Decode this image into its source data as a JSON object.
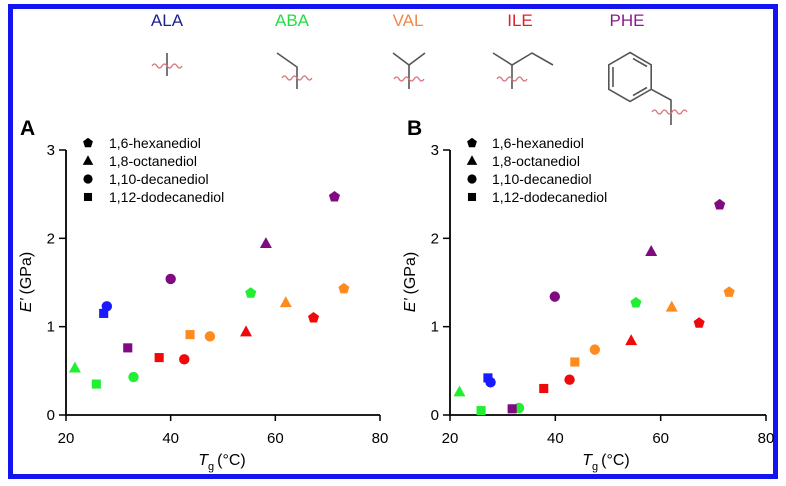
{
  "header": {
    "amino_acids": [
      {
        "code": "ALA",
        "color": "#1e1e96"
      },
      {
        "code": "ABA",
        "color": "#22dd44"
      },
      {
        "code": "VAL",
        "color": "#f0884a"
      },
      {
        "code": "ILE",
        "color": "#e01e28"
      },
      {
        "code": "PHE",
        "color": "#8c1a8c"
      }
    ]
  },
  "legend": {
    "entries": [
      {
        "marker": "pentagon",
        "label": "1,6-hexanediol"
      },
      {
        "marker": "triangle",
        "label": "1,8-octanediol"
      },
      {
        "marker": "circle",
        "label": "1,10-decanediol"
      },
      {
        "marker": "square",
        "label": "1,12-dodecanediol"
      }
    ]
  },
  "colors": {
    "ALA": "#1a1aff",
    "ABA": "#22ee33",
    "VAL": "#ff8a1e",
    "ILE": "#ee0a0a",
    "PHE": "#800a80",
    "border": "#1414f0"
  },
  "chart_data": [
    {
      "type": "scatter",
      "panel": "A",
      "xlabel": "T",
      "xlabel_sub": "g",
      "xlabel_unit": "(°C)",
      "ylabel": "E'",
      "ylabel_unit": "(GPa)",
      "xlim": [
        20,
        80
      ],
      "ylim": [
        0,
        3
      ],
      "xticks": [
        "20",
        "40",
        "60",
        "80"
      ],
      "yticks": [
        "0",
        "1",
        "2",
        "3"
      ],
      "grid": false,
      "legend_position": "top-left",
      "points": [
        {
          "amino_acid": "ALA",
          "diol": "square",
          "x": 27.2,
          "y": 1.15
        },
        {
          "amino_acid": "ALA",
          "diol": "circle",
          "x": 27.8,
          "y": 1.23
        },
        {
          "amino_acid": "ABA",
          "diol": "triangle",
          "x": 21.7,
          "y": 0.53
        },
        {
          "amino_acid": "ABA",
          "diol": "square",
          "x": 25.8,
          "y": 0.35
        },
        {
          "amino_acid": "ABA",
          "diol": "circle",
          "x": 32.9,
          "y": 0.43
        },
        {
          "amino_acid": "ABA",
          "diol": "pentagon",
          "x": 55.3,
          "y": 1.38
        },
        {
          "amino_acid": "VAL",
          "diol": "square",
          "x": 43.7,
          "y": 0.91
        },
        {
          "amino_acid": "VAL",
          "diol": "circle",
          "x": 47.5,
          "y": 0.89
        },
        {
          "amino_acid": "VAL",
          "diol": "triangle",
          "x": 62.0,
          "y": 1.27
        },
        {
          "amino_acid": "VAL",
          "diol": "pentagon",
          "x": 73.1,
          "y": 1.43
        },
        {
          "amino_acid": "ILE",
          "diol": "square",
          "x": 37.8,
          "y": 0.65
        },
        {
          "amino_acid": "ILE",
          "diol": "circle",
          "x": 42.6,
          "y": 0.63
        },
        {
          "amino_acid": "ILE",
          "diol": "triangle",
          "x": 54.4,
          "y": 0.94
        },
        {
          "amino_acid": "ILE",
          "diol": "pentagon",
          "x": 67.3,
          "y": 1.1
        },
        {
          "amino_acid": "PHE",
          "diol": "square",
          "x": 31.8,
          "y": 0.76
        },
        {
          "amino_acid": "PHE",
          "diol": "circle",
          "x": 40.0,
          "y": 1.54
        },
        {
          "amino_acid": "PHE",
          "diol": "triangle",
          "x": 58.2,
          "y": 1.94
        },
        {
          "amino_acid": "PHE",
          "diol": "pentagon",
          "x": 71.3,
          "y": 2.47
        }
      ]
    },
    {
      "type": "scatter",
      "panel": "B",
      "xlabel": "T",
      "xlabel_sub": "g",
      "xlabel_unit": "(°C)",
      "ylabel": "E'",
      "ylabel_unit": "(GPa)",
      "xlim": [
        20,
        80
      ],
      "ylim": [
        0,
        3
      ],
      "xticks": [
        "20",
        "40",
        "60",
        "80"
      ],
      "yticks": [
        "0",
        "1",
        "2",
        "3"
      ],
      "grid": false,
      "legend_position": "top-left",
      "points": [
        {
          "amino_acid": "ALA",
          "diol": "square",
          "x": 27.2,
          "y": 0.42
        },
        {
          "amino_acid": "ALA",
          "diol": "circle",
          "x": 27.7,
          "y": 0.37
        },
        {
          "amino_acid": "ABA",
          "diol": "triangle",
          "x": 21.8,
          "y": 0.26
        },
        {
          "amino_acid": "ABA",
          "diol": "square",
          "x": 25.9,
          "y": 0.05
        },
        {
          "amino_acid": "ABA",
          "diol": "circle",
          "x": 33.1,
          "y": 0.08
        },
        {
          "amino_acid": "ABA",
          "diol": "pentagon",
          "x": 55.3,
          "y": 1.27
        },
        {
          "amino_acid": "VAL",
          "diol": "square",
          "x": 43.7,
          "y": 0.6
        },
        {
          "amino_acid": "VAL",
          "diol": "circle",
          "x": 47.5,
          "y": 0.74
        },
        {
          "amino_acid": "VAL",
          "diol": "triangle",
          "x": 62.1,
          "y": 1.22
        },
        {
          "amino_acid": "VAL",
          "diol": "pentagon",
          "x": 73.0,
          "y": 1.39
        },
        {
          "amino_acid": "ILE",
          "diol": "square",
          "x": 37.8,
          "y": 0.3
        },
        {
          "amino_acid": "ILE",
          "diol": "circle",
          "x": 42.7,
          "y": 0.4
        },
        {
          "amino_acid": "ILE",
          "diol": "triangle",
          "x": 54.4,
          "y": 0.84
        },
        {
          "amino_acid": "ILE",
          "diol": "pentagon",
          "x": 67.3,
          "y": 1.04
        },
        {
          "amino_acid": "PHE",
          "diol": "square",
          "x": 31.8,
          "y": 0.07
        },
        {
          "amino_acid": "PHE",
          "diol": "circle",
          "x": 39.9,
          "y": 1.34
        },
        {
          "amino_acid": "PHE",
          "diol": "triangle",
          "x": 58.2,
          "y": 1.85
        },
        {
          "amino_acid": "PHE",
          "diol": "pentagon",
          "x": 71.2,
          "y": 2.38
        }
      ]
    }
  ]
}
